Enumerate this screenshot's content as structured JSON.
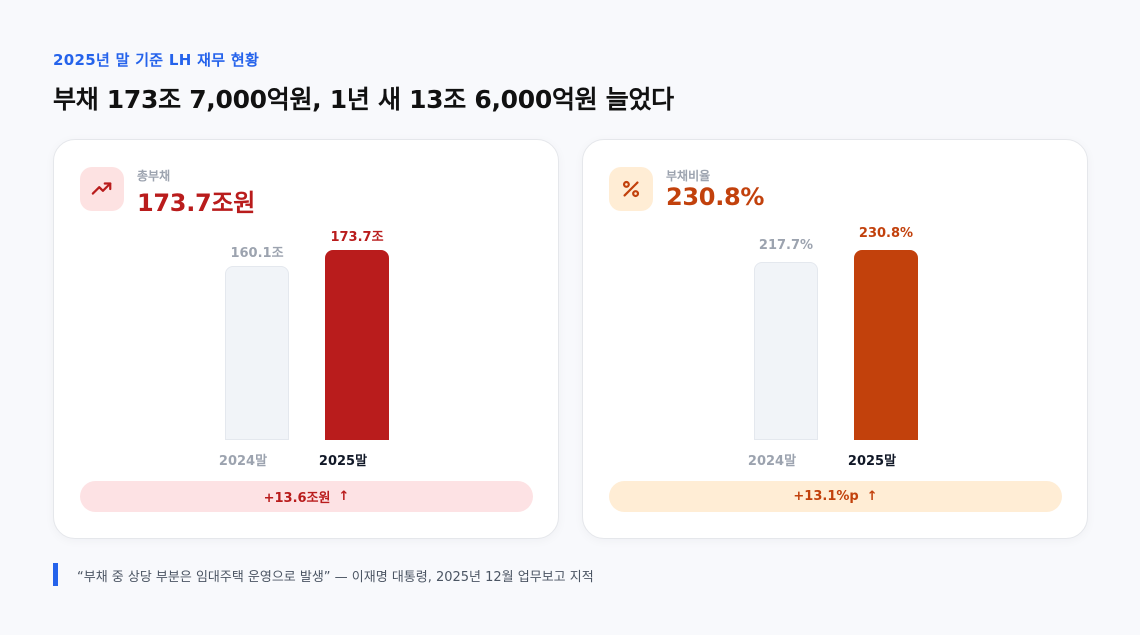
{
  "eyebrow": "2025년 말 기준 LH 재무 현황",
  "headline": "부채 173조 7,000억원, 1년 새 13조 6,000억원 늘었다",
  "cards": [
    {
      "icon": "trending-up-icon",
      "label": "총부채",
      "value": "173.7조원",
      "accent": "#b91c1c",
      "icon_bg": "#fde2e2",
      "pill_bg": "#fde2e4",
      "change": "+13.6조원",
      "change_arrow": "↑"
    },
    {
      "icon": "percent-icon",
      "label": "부채비율",
      "value": "230.8%",
      "accent": "#c2410c",
      "icon_bg": "#ffedd5",
      "pill_bg": "#ffedd5",
      "change": "+13.1%p",
      "change_arrow": "↑"
    }
  ],
  "chart_data": [
    {
      "type": "bar",
      "categories": [
        "2024말",
        "2025말"
      ],
      "values": [
        160.1,
        173.7
      ],
      "data_labels": [
        "160.1조",
        "173.7조"
      ],
      "colors": [
        "#f1f4f8",
        "#b91c1c"
      ]
    },
    {
      "type": "bar",
      "categories": [
        "2024말",
        "2025말"
      ],
      "values": [
        217.7,
        230.8
      ],
      "data_labels": [
        "217.7%",
        "230.8%"
      ],
      "colors": [
        "#f1f4f8",
        "#c2410c"
      ]
    }
  ],
  "quote": "“부채 중 상당 부분은 임대주택 운영으로 발생” — 이재명 대통령, 2025년 12월 업무보고 지적"
}
